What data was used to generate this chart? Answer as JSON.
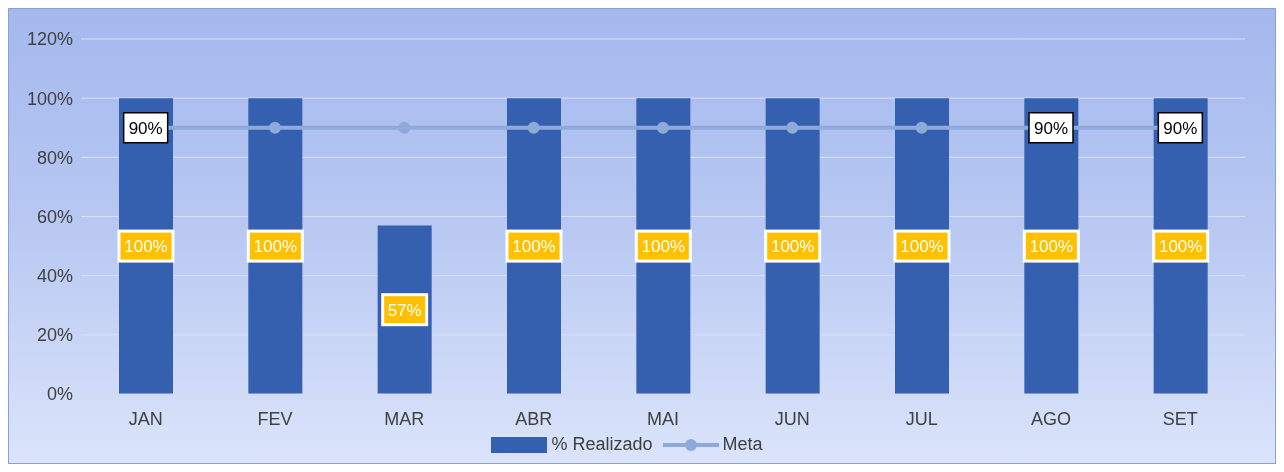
{
  "chart_data": {
    "type": "bar",
    "categories": [
      "JAN",
      "FEV",
      "MAR",
      "ABR",
      "MAI",
      "JUN",
      "JUL",
      "AGO",
      "SET"
    ],
    "series": [
      {
        "name": "% Realizado",
        "color": "#3560b0",
        "values": [
          100,
          100,
          57,
          100,
          100,
          100,
          100,
          100,
          100
        ],
        "value_labels": [
          "100%",
          "100%",
          "57%",
          "100%",
          "100%",
          "100%",
          "100%",
          "100%",
          "100%"
        ]
      },
      {
        "name": "Meta",
        "type": "line",
        "color": "#8eaadb",
        "marker": "circle",
        "values": [
          90,
          90,
          90,
          90,
          90,
          90,
          90,
          90,
          90
        ],
        "value_labels": [
          "90%",
          null,
          null,
          null,
          null,
          null,
          null,
          "90%",
          "90%"
        ]
      }
    ],
    "ylim": [
      0,
      120
    ],
    "yticks": [
      {
        "value": 0,
        "label": "0%"
      },
      {
        "value": 20,
        "label": "20%"
      },
      {
        "value": 40,
        "label": "40%"
      },
      {
        "value": 60,
        "label": "60%"
      },
      {
        "value": 80,
        "label": "80%"
      },
      {
        "value": 100,
        "label": "100%"
      },
      {
        "value": 120,
        "label": "120%"
      }
    ],
    "grid": "y",
    "legend": "bottom"
  }
}
